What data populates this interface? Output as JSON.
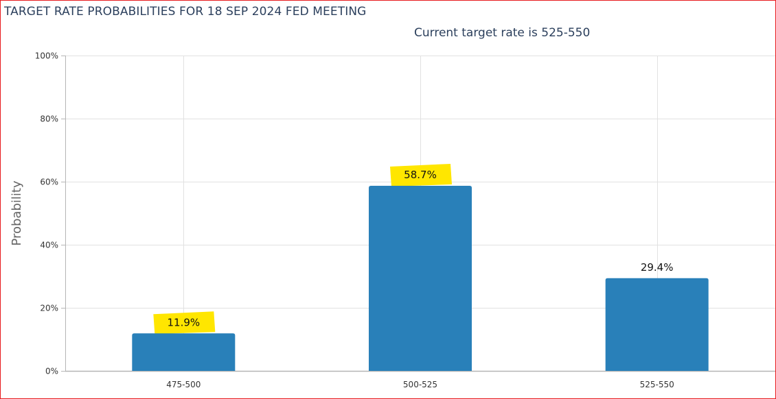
{
  "chart_data": {
    "type": "bar",
    "title": "TARGET RATE PROBABILITIES FOR 18 SEP 2024 FED MEETING",
    "subtitle": "Current target rate is 525-550",
    "ylabel": "Probability",
    "categories": [
      "475-500",
      "500-525",
      "525-550"
    ],
    "values": [
      11.9,
      58.7,
      29.4
    ],
    "data_labels": [
      "11.9%",
      "58.7%",
      "29.4%"
    ],
    "highlighted": [
      true,
      true,
      false
    ],
    "ylim": [
      0,
      100
    ],
    "yticks": [
      0,
      20,
      40,
      60,
      80,
      100
    ],
    "ytick_labels": [
      "0%",
      "20%",
      "40%",
      "60%",
      "80%",
      "100%"
    ],
    "grid": true,
    "colors": {
      "bar": "#2980b9",
      "highlight": "#ffe600",
      "grid": "#e1e1e1",
      "axis": "#b5b5b5",
      "title": "#2b3f5c",
      "label": "#333333",
      "frame": "#e8191c"
    }
  }
}
